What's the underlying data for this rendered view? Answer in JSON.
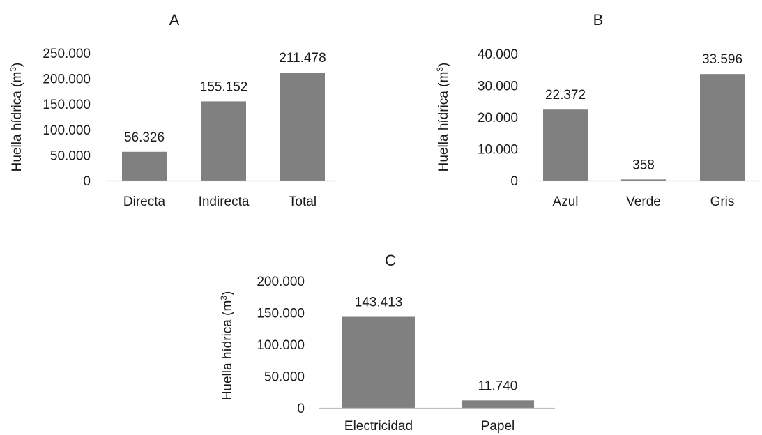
{
  "chart_data": [
    {
      "type": "bar",
      "title": "A",
      "ylabel": "Huella hídrica (m³)",
      "ylabel_base": "Huella hídrica (m",
      "ylabel_sup": "3",
      "ylabel_end": ")",
      "ylim": [
        0,
        250000
      ],
      "ytick_values": [
        0,
        50000,
        100000,
        150000,
        200000,
        250000
      ],
      "ytick_labels": [
        "0",
        "50.000",
        "100.000",
        "150.000",
        "200.000",
        "250.000"
      ],
      "categories": [
        "Directa",
        "Indirecta",
        "Total"
      ],
      "values": [
        56326,
        155152,
        211478
      ],
      "data_labels": [
        "56.326",
        "155.152",
        "211.478"
      ],
      "bar_color": "#808080"
    },
    {
      "type": "bar",
      "title": "B",
      "ylabel": "Huella hídrica (m³)",
      "ylabel_base": "Huella hídrica (m",
      "ylabel_sup": "3",
      "ylabel_end": ")",
      "ylim": [
        0,
        40000
      ],
      "ytick_values": [
        0,
        10000,
        20000,
        30000,
        40000
      ],
      "ytick_labels": [
        "0",
        "10.000",
        "20.000",
        "30.000",
        "40.000"
      ],
      "categories": [
        "Azul",
        "Verde",
        "Gris"
      ],
      "values": [
        22372,
        358,
        33596
      ],
      "data_labels": [
        "22.372",
        "358",
        "33.596"
      ],
      "bar_color": "#808080"
    },
    {
      "type": "bar",
      "title": "C",
      "ylabel": "Huella hídrica (m³)",
      "ylabel_base": "Huella hídrica (m",
      "ylabel_sup": "3",
      "ylabel_end": ")",
      "ylim": [
        0,
        200000
      ],
      "ytick_values": [
        0,
        50000,
        100000,
        150000,
        200000
      ],
      "ytick_labels": [
        "0",
        "50.000",
        "100.000",
        "150.000",
        "200.000"
      ],
      "categories": [
        "Electricidad",
        "Papel"
      ],
      "values": [
        143413,
        11740
      ],
      "data_labels": [
        "143.413",
        "11.740"
      ],
      "bar_color": "#808080"
    }
  ]
}
